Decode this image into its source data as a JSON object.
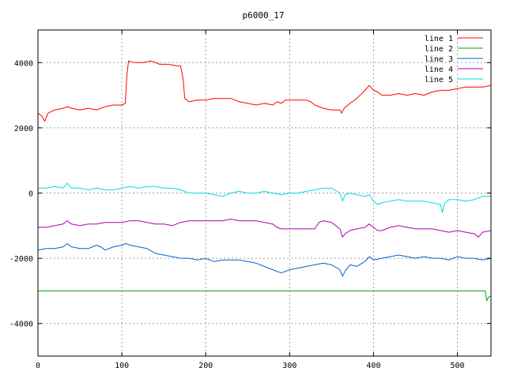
{
  "chart_data": {
    "type": "line",
    "title": "p6000_17",
    "xlabel": "",
    "ylabel": "",
    "xlim": [
      0,
      540
    ],
    "ylim": [
      -5000,
      5000
    ],
    "x_ticks": [
      0,
      100,
      200,
      300,
      400,
      500
    ],
    "y_ticks": [
      -4000,
      -2000,
      0,
      2000,
      4000
    ],
    "grid": true,
    "legend_position": "top-right",
    "series": [
      {
        "name": "line 1",
        "color": "#ff0000",
        "points": [
          [
            0,
            2450
          ],
          [
            5,
            2350
          ],
          [
            8,
            2200
          ],
          [
            12,
            2450
          ],
          [
            20,
            2550
          ],
          [
            30,
            2600
          ],
          [
            35,
            2650
          ],
          [
            40,
            2600
          ],
          [
            50,
            2550
          ],
          [
            60,
            2600
          ],
          [
            70,
            2550
          ],
          [
            80,
            2650
          ],
          [
            90,
            2700
          ],
          [
            100,
            2700
          ],
          [
            104,
            2750
          ],
          [
            106,
            3600
          ],
          [
            108,
            4050
          ],
          [
            115,
            4000
          ],
          [
            125,
            4000
          ],
          [
            135,
            4050
          ],
          [
            145,
            3950
          ],
          [
            155,
            3950
          ],
          [
            165,
            3900
          ],
          [
            170,
            3900
          ],
          [
            173,
            3500
          ],
          [
            175,
            2900
          ],
          [
            180,
            2800
          ],
          [
            190,
            2850
          ],
          [
            200,
            2850
          ],
          [
            210,
            2900
          ],
          [
            220,
            2900
          ],
          [
            230,
            2900
          ],
          [
            240,
            2800
          ],
          [
            250,
            2750
          ],
          [
            260,
            2700
          ],
          [
            270,
            2750
          ],
          [
            280,
            2700
          ],
          [
            285,
            2800
          ],
          [
            290,
            2750
          ],
          [
            295,
            2850
          ],
          [
            300,
            2850
          ],
          [
            310,
            2850
          ],
          [
            320,
            2850
          ],
          [
            325,
            2800
          ],
          [
            330,
            2700
          ],
          [
            340,
            2600
          ],
          [
            350,
            2550
          ],
          [
            360,
            2550
          ],
          [
            362,
            2450
          ],
          [
            365,
            2600
          ],
          [
            372,
            2750
          ],
          [
            380,
            2900
          ],
          [
            388,
            3100
          ],
          [
            395,
            3300
          ],
          [
            400,
            3150
          ],
          [
            405,
            3100
          ],
          [
            410,
            3000
          ],
          [
            420,
            3000
          ],
          [
            430,
            3050
          ],
          [
            440,
            3000
          ],
          [
            450,
            3050
          ],
          [
            460,
            3000
          ],
          [
            470,
            3100
          ],
          [
            480,
            3150
          ],
          [
            490,
            3150
          ],
          [
            500,
            3200
          ],
          [
            510,
            3250
          ],
          [
            520,
            3250
          ],
          [
            530,
            3250
          ],
          [
            540,
            3300
          ]
        ]
      },
      {
        "name": "line 2",
        "color": "#00a000",
        "points": [
          [
            0,
            -3000
          ],
          [
            100,
            -3000
          ],
          [
            200,
            -3000
          ],
          [
            300,
            -3000
          ],
          [
            400,
            -3000
          ],
          [
            500,
            -3000
          ],
          [
            533,
            -3000
          ],
          [
            535,
            -3300
          ],
          [
            537,
            -3200
          ],
          [
            540,
            -3150
          ]
        ]
      },
      {
        "name": "line 3",
        "color": "#0066cc",
        "points": [
          [
            0,
            -1750
          ],
          [
            10,
            -1700
          ],
          [
            20,
            -1700
          ],
          [
            30,
            -1650
          ],
          [
            35,
            -1550
          ],
          [
            40,
            -1650
          ],
          [
            50,
            -1700
          ],
          [
            60,
            -1700
          ],
          [
            65,
            -1650
          ],
          [
            70,
            -1600
          ],
          [
            75,
            -1650
          ],
          [
            80,
            -1750
          ],
          [
            90,
            -1650
          ],
          [
            100,
            -1600
          ],
          [
            105,
            -1550
          ],
          [
            110,
            -1600
          ],
          [
            120,
            -1650
          ],
          [
            130,
            -1700
          ],
          [
            140,
            -1850
          ],
          [
            150,
            -1900
          ],
          [
            160,
            -1950
          ],
          [
            170,
            -2000
          ],
          [
            180,
            -2000
          ],
          [
            190,
            -2050
          ],
          [
            200,
            -2000
          ],
          [
            210,
            -2100
          ],
          [
            220,
            -2050
          ],
          [
            230,
            -2050
          ],
          [
            240,
            -2050
          ],
          [
            250,
            -2100
          ],
          [
            260,
            -2150
          ],
          [
            270,
            -2250
          ],
          [
            280,
            -2350
          ],
          [
            290,
            -2450
          ],
          [
            300,
            -2350
          ],
          [
            310,
            -2300
          ],
          [
            320,
            -2250
          ],
          [
            330,
            -2200
          ],
          [
            340,
            -2150
          ],
          [
            350,
            -2200
          ],
          [
            360,
            -2350
          ],
          [
            363,
            -2550
          ],
          [
            366,
            -2400
          ],
          [
            372,
            -2200
          ],
          [
            380,
            -2250
          ],
          [
            390,
            -2100
          ],
          [
            395,
            -1950
          ],
          [
            400,
            -2050
          ],
          [
            410,
            -2000
          ],
          [
            420,
            -1950
          ],
          [
            430,
            -1900
          ],
          [
            440,
            -1950
          ],
          [
            450,
            -2000
          ],
          [
            460,
            -1950
          ],
          [
            470,
            -2000
          ],
          [
            480,
            -2000
          ],
          [
            490,
            -2050
          ],
          [
            500,
            -1950
          ],
          [
            510,
            -2000
          ],
          [
            520,
            -2000
          ],
          [
            530,
            -2050
          ],
          [
            540,
            -2000
          ]
        ]
      },
      {
        "name": "line 4",
        "color": "#b000b0",
        "points": [
          [
            0,
            -1050
          ],
          [
            10,
            -1050
          ],
          [
            20,
            -1000
          ],
          [
            30,
            -950
          ],
          [
            35,
            -850
          ],
          [
            40,
            -950
          ],
          [
            50,
            -1000
          ],
          [
            60,
            -950
          ],
          [
            70,
            -950
          ],
          [
            80,
            -900
          ],
          [
            90,
            -900
          ],
          [
            100,
            -900
          ],
          [
            110,
            -850
          ],
          [
            120,
            -850
          ],
          [
            130,
            -900
          ],
          [
            140,
            -950
          ],
          [
            150,
            -950
          ],
          [
            160,
            -1000
          ],
          [
            170,
            -900
          ],
          [
            180,
            -850
          ],
          [
            190,
            -850
          ],
          [
            200,
            -850
          ],
          [
            210,
            -850
          ],
          [
            220,
            -850
          ],
          [
            230,
            -800
          ],
          [
            240,
            -850
          ],
          [
            250,
            -850
          ],
          [
            260,
            -850
          ],
          [
            270,
            -900
          ],
          [
            280,
            -950
          ],
          [
            285,
            -1050
          ],
          [
            290,
            -1100
          ],
          [
            300,
            -1100
          ],
          [
            310,
            -1100
          ],
          [
            320,
            -1100
          ],
          [
            330,
            -1100
          ],
          [
            335,
            -900
          ],
          [
            340,
            -850
          ],
          [
            350,
            -900
          ],
          [
            360,
            -1100
          ],
          [
            363,
            -1350
          ],
          [
            366,
            -1250
          ],
          [
            372,
            -1150
          ],
          [
            380,
            -1100
          ],
          [
            390,
            -1050
          ],
          [
            395,
            -950
          ],
          [
            400,
            -1050
          ],
          [
            405,
            -1150
          ],
          [
            410,
            -1150
          ],
          [
            420,
            -1050
          ],
          [
            430,
            -1000
          ],
          [
            440,
            -1050
          ],
          [
            450,
            -1100
          ],
          [
            460,
            -1100
          ],
          [
            470,
            -1100
          ],
          [
            480,
            -1150
          ],
          [
            490,
            -1200
          ],
          [
            500,
            -1150
          ],
          [
            510,
            -1200
          ],
          [
            520,
            -1250
          ],
          [
            525,
            -1350
          ],
          [
            530,
            -1200
          ],
          [
            540,
            -1150
          ]
        ]
      },
      {
        "name": "line 5",
        "color": "#00dddd",
        "points": [
          [
            0,
            150
          ],
          [
            10,
            150
          ],
          [
            20,
            200
          ],
          [
            30,
            150
          ],
          [
            35,
            300
          ],
          [
            40,
            150
          ],
          [
            50,
            150
          ],
          [
            60,
            100
          ],
          [
            70,
            150
          ],
          [
            80,
            100
          ],
          [
            90,
            100
          ],
          [
            100,
            150
          ],
          [
            110,
            200
          ],
          [
            120,
            150
          ],
          [
            130,
            200
          ],
          [
            140,
            200
          ],
          [
            150,
            150
          ],
          [
            160,
            150
          ],
          [
            170,
            100
          ],
          [
            180,
            0
          ],
          [
            190,
            0
          ],
          [
            200,
            0
          ],
          [
            210,
            -50
          ],
          [
            220,
            -100
          ],
          [
            230,
            0
          ],
          [
            240,
            50
          ],
          [
            250,
            0
          ],
          [
            260,
            0
          ],
          [
            270,
            50
          ],
          [
            280,
            0
          ],
          [
            290,
            -50
          ],
          [
            300,
            0
          ],
          [
            310,
            0
          ],
          [
            320,
            50
          ],
          [
            330,
            100
          ],
          [
            340,
            150
          ],
          [
            350,
            150
          ],
          [
            360,
            0
          ],
          [
            363,
            -250
          ],
          [
            366,
            -50
          ],
          [
            372,
            0
          ],
          [
            380,
            -50
          ],
          [
            390,
            -100
          ],
          [
            395,
            -50
          ],
          [
            400,
            -250
          ],
          [
            405,
            -350
          ],
          [
            410,
            -300
          ],
          [
            420,
            -250
          ],
          [
            430,
            -200
          ],
          [
            440,
            -250
          ],
          [
            450,
            -250
          ],
          [
            460,
            -250
          ],
          [
            470,
            -300
          ],
          [
            480,
            -350
          ],
          [
            482,
            -600
          ],
          [
            485,
            -300
          ],
          [
            490,
            -200
          ],
          [
            500,
            -200
          ],
          [
            510,
            -250
          ],
          [
            520,
            -200
          ],
          [
            530,
            -100
          ],
          [
            540,
            -100
          ]
        ]
      }
    ]
  }
}
